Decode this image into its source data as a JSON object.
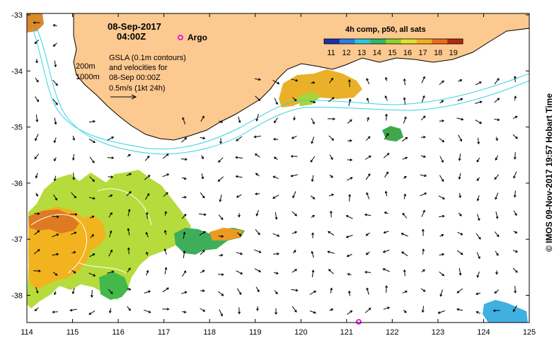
{
  "map": {
    "date_label": "08-Sep-2017",
    "time_label": "04:00Z",
    "argo_label": "Argo",
    "isobath_labels": [
      "200m",
      "1000m"
    ],
    "gsla_note": [
      "GSLA (0.1m contours)",
      "and velocities for",
      "08-Sep 00:00Z",
      "0.5m/s (1kt 24h)"
    ],
    "colorbar": {
      "title": "4h comp, p50, all sats",
      "ticks": [
        "11",
        "12",
        "13",
        "14",
        "15",
        "16",
        "17",
        "18",
        "19"
      ],
      "colors": [
        "#1f2fa8",
        "#2a7fe0",
        "#2ec6d8",
        "#2fb86a",
        "#8fd230",
        "#dfe22a",
        "#f2b01d",
        "#e86d1a",
        "#b02b10"
      ]
    },
    "lon_ticks": [
      "114",
      "115",
      "116",
      "117",
      "118",
      "119",
      "120",
      "121",
      "122",
      "123",
      "124",
      "125"
    ],
    "lat_ticks": [
      "-33",
      "-34",
      "-35",
      "-36",
      "-37",
      "-38"
    ],
    "credit": "© IMOS 09-Nov-2017 19:57 Hobart Time",
    "land_color": "#fcc990",
    "isobath_color": "#35d3e6",
    "argo_color": "#e020e0"
  }
}
